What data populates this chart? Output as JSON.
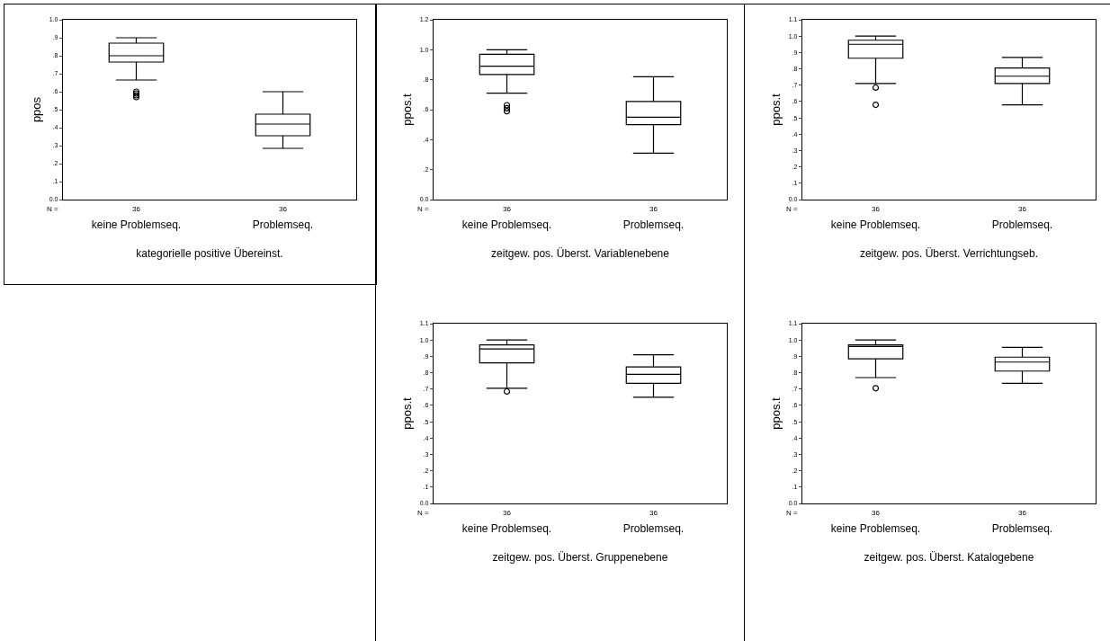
{
  "chart_data": [
    {
      "type": "box",
      "xlabel": "kategorielle positive Übereinst.",
      "ylabel": "ppos",
      "categories": [
        "keine Problemseq.",
        "Problemseq."
      ],
      "ylim": [
        0,
        1
      ],
      "yticks": [
        {
          "value": 0,
          "label": "0.0"
        },
        {
          "value": 0.1,
          "label": ".1"
        },
        {
          "value": 0.2,
          "label": ".2"
        },
        {
          "value": 0.3,
          "label": ".3"
        },
        {
          "value": 0.4,
          "label": ".4"
        },
        {
          "value": 0.5,
          "label": ".5"
        },
        {
          "value": 0.6,
          "label": ".6"
        },
        {
          "value": 0.7,
          "label": ".7"
        },
        {
          "value": 0.8,
          "label": ".8"
        },
        {
          "value": 0.9,
          "label": ".9"
        },
        {
          "value": 1,
          "label": "1.0"
        }
      ],
      "series": [
        {
          "color": "#000000",
          "boxes": [
            {
              "low": 0.665,
              "q1": 0.765,
              "median": 0.8,
              "q3": 0.87,
              "high": 0.9,
              "outliers": [
                0.6,
                0.59,
                0.58,
                0.57
              ]
            },
            {
              "low": 0.285,
              "q1": 0.355,
              "median": 0.42,
              "q3": 0.475,
              "high": 0.6
            }
          ]
        }
      ],
      "annotations": [
        "N =",
        "36",
        "36"
      ]
    },
    {
      "type": "box",
      "xlabel": "zeitgew. pos. Überst. Variablenebene",
      "ylabel": "ppos.t",
      "categories": [
        "keine Problemseq.",
        "Problemseq."
      ],
      "ylim": [
        0,
        1.2
      ],
      "yticks": [
        {
          "value": 0,
          "label": "0.0"
        },
        {
          "value": 0.2,
          "label": ".2"
        },
        {
          "value": 0.4,
          "label": ".4"
        },
        {
          "value": 0.6,
          "label": ".6"
        },
        {
          "value": 0.8,
          "label": ".8"
        },
        {
          "value": 1,
          "label": "1.0"
        },
        {
          "value": 1.2,
          "label": "1.2"
        }
      ],
      "series": [
        {
          "color": "#000000",
          "boxes": [
            {
              "low": 0.71,
              "q1": 0.835,
              "median": 0.89,
              "q3": 0.97,
              "high": 1.0,
              "outliers": [
                0.63,
                0.61,
                0.59
              ]
            },
            {
              "low": 0.31,
              "q1": 0.5,
              "median": 0.55,
              "q3": 0.655,
              "high": 0.82
            }
          ]
        }
      ],
      "annotations": [
        "N =",
        "36",
        "36"
      ]
    },
    {
      "type": "box",
      "xlabel": "zeitgew. pos. Überst. Verrichtungseb.",
      "ylabel": "ppos.t",
      "categories": [
        "keine Problemseq.",
        "Problemseq."
      ],
      "ylim": [
        0,
        1.1
      ],
      "yticks": [
        {
          "value": 0,
          "label": "0.0"
        },
        {
          "value": 0.1,
          "label": ".1"
        },
        {
          "value": 0.2,
          "label": ".2"
        },
        {
          "value": 0.3,
          "label": ".3"
        },
        {
          "value": 0.4,
          "label": ".4"
        },
        {
          "value": 0.5,
          "label": ".5"
        },
        {
          "value": 0.6,
          "label": ".6"
        },
        {
          "value": 0.7,
          "label": ".7"
        },
        {
          "value": 0.8,
          "label": ".8"
        },
        {
          "value": 0.9,
          "label": ".9"
        },
        {
          "value": 1,
          "label": "1.0"
        },
        {
          "value": 1.1,
          "label": "1.1"
        }
      ],
      "series": [
        {
          "color": "#000000",
          "boxes": [
            {
              "low": 0.71,
              "q1": 0.865,
              "median": 0.95,
              "q3": 0.975,
              "high": 1.0,
              "outliers": [
                0.685,
                0.58
              ]
            },
            {
              "low": 0.58,
              "q1": 0.71,
              "median": 0.755,
              "q3": 0.805,
              "high": 0.87
            }
          ]
        }
      ],
      "annotations": [
        "N =",
        "36",
        "36"
      ]
    },
    {
      "type": "box",
      "xlabel": "zeitgew. pos. Überst. Gruppenebene",
      "ylabel": "ppos.t",
      "categories": [
        "keine Problemseq.",
        "Problemseq."
      ],
      "ylim": [
        0,
        1.1
      ],
      "yticks": [
        {
          "value": 0,
          "label": "0.0"
        },
        {
          "value": 0.1,
          "label": ".1"
        },
        {
          "value": 0.2,
          "label": ".2"
        },
        {
          "value": 0.3,
          "label": ".3"
        },
        {
          "value": 0.4,
          "label": ".4"
        },
        {
          "value": 0.5,
          "label": ".5"
        },
        {
          "value": 0.6,
          "label": ".6"
        },
        {
          "value": 0.7,
          "label": ".7"
        },
        {
          "value": 0.8,
          "label": ".8"
        },
        {
          "value": 0.9,
          "label": ".9"
        },
        {
          "value": 1,
          "label": "1.0"
        },
        {
          "value": 1.1,
          "label": "1.1"
        }
      ],
      "series": [
        {
          "color": "#000000",
          "boxes": [
            {
              "low": 0.705,
              "q1": 0.86,
              "median": 0.945,
              "q3": 0.97,
              "high": 1.0,
              "outliers": [
                0.685
              ]
            },
            {
              "low": 0.65,
              "q1": 0.735,
              "median": 0.79,
              "q3": 0.835,
              "high": 0.91
            }
          ]
        }
      ],
      "annotations": [
        "N =",
        "36",
        "36"
      ]
    },
    {
      "type": "box",
      "xlabel": "zeitgew. pos. Überst. Katalogebene",
      "ylabel": "ppos.t",
      "categories": [
        "keine Problemseq.",
        "Problemseq."
      ],
      "ylim": [
        0,
        1.1
      ],
      "yticks": [
        {
          "value": 0,
          "label": "0.0"
        },
        {
          "value": 0.1,
          "label": ".1"
        },
        {
          "value": 0.2,
          "label": ".2"
        },
        {
          "value": 0.3,
          "label": ".3"
        },
        {
          "value": 0.4,
          "label": ".4"
        },
        {
          "value": 0.5,
          "label": ".5"
        },
        {
          "value": 0.6,
          "label": ".6"
        },
        {
          "value": 0.7,
          "label": ".7"
        },
        {
          "value": 0.8,
          "label": ".8"
        },
        {
          "value": 0.9,
          "label": ".9"
        },
        {
          "value": 1,
          "label": "1.0"
        },
        {
          "value": 1.1,
          "label": "1.1"
        }
      ],
      "series": [
        {
          "color": "#000000",
          "boxes": [
            {
              "low": 0.77,
              "q1": 0.885,
              "median": 0.96,
              "q3": 0.97,
              "high": 1.0,
              "outliers": [
                0.705
              ]
            },
            {
              "low": 0.735,
              "q1": 0.81,
              "median": 0.865,
              "q3": 0.895,
              "high": 0.955
            }
          ]
        }
      ],
      "annotations": [
        "N =",
        "36",
        "36"
      ]
    }
  ]
}
